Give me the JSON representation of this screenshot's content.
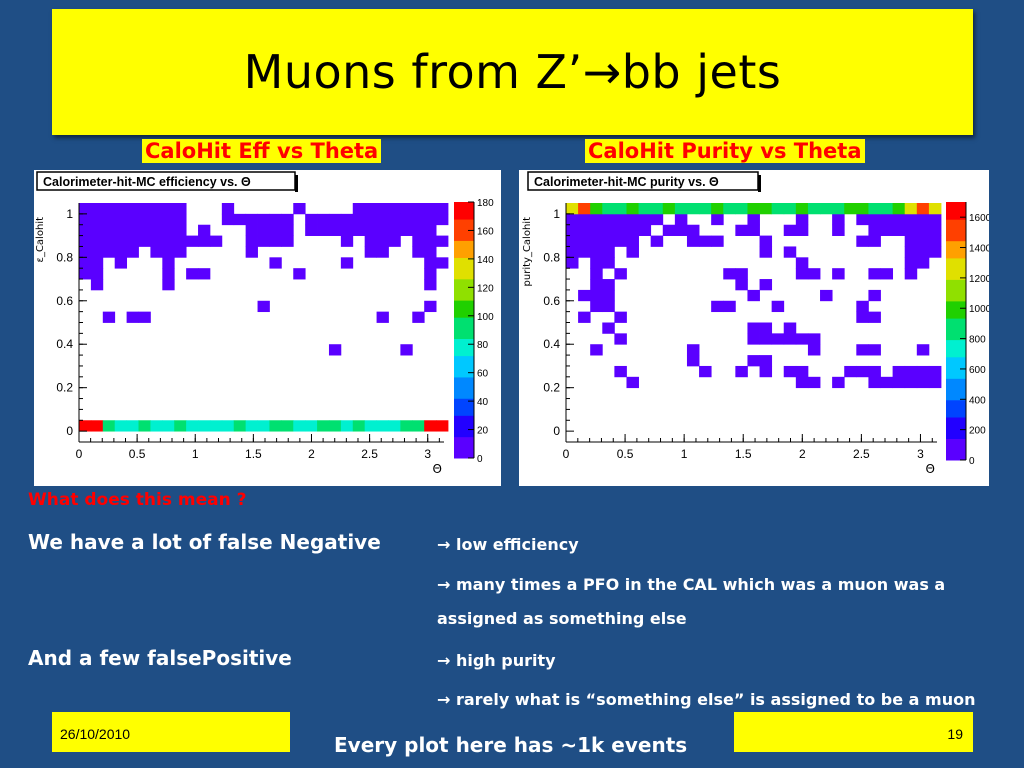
{
  "slide": {
    "title": "Muons from Z’→bb jets",
    "question": "What does this mean ?",
    "false_negative": "We have a lot of false Negative",
    "false_positive": "And a few falsePositive",
    "bullets": [
      "→ low efficiency",
      "→ many times a PFO in the CAL which was a muon was  a",
      "assigned as something else",
      "→ high purity",
      "→ rarely what is  “something else” is assigned to be a muon"
    ],
    "footer_date": "26/10/2010",
    "footer_page": "19",
    "footer_note": "Every plot here has ~1k events"
  },
  "chart_data": [
    {
      "type": "heatmap",
      "caption": "CaloHit Eff vs Theta",
      "title": "Calorimeter-hit-MC efficiency vs. Θ",
      "xlabel": "Θ",
      "ylabel": "ε_Calohit",
      "xlim": [
        0,
        3.14
      ],
      "ylim": [
        -0.05,
        1.05
      ],
      "x_ticks": [
        "0",
        "0.5",
        "1",
        "1.5",
        "2",
        "2.5",
        "3"
      ],
      "y_ticks": [
        "0",
        "0.2",
        "0.4",
        "0.6",
        "0.8",
        "1"
      ],
      "z_ticks": [
        "0",
        "20",
        "40",
        "60",
        "80",
        "100",
        "120",
        "140",
        "160",
        "180"
      ],
      "z_max": 180,
      "nbins_x": 31,
      "nbins_y": 22,
      "bin_value": 10,
      "dense_row": {
        "y_bin": 1,
        "values": [
          170,
          180,
          90,
          70,
          80,
          85,
          80,
          75,
          85,
          80,
          80,
          75,
          80,
          85,
          75,
          80,
          85,
          90,
          80,
          75,
          85,
          90,
          80,
          85,
          80,
          75,
          80,
          85,
          95,
          180,
          170
        ]
      },
      "colors": {
        "sparse": "#9a1aff",
        "grid": "#000000"
      },
      "cells": [
        [
          0,
          21
        ],
        [
          1,
          21
        ],
        [
          2,
          21
        ],
        [
          3,
          21
        ],
        [
          4,
          21
        ],
        [
          5,
          21
        ],
        [
          6,
          21
        ],
        [
          7,
          21
        ],
        [
          8,
          21
        ],
        [
          12,
          21
        ],
        [
          18,
          21
        ],
        [
          23,
          21
        ],
        [
          24,
          21
        ],
        [
          25,
          21
        ],
        [
          26,
          21
        ],
        [
          27,
          21
        ],
        [
          28,
          21
        ],
        [
          29,
          21
        ],
        [
          30,
          21
        ],
        [
          0,
          20
        ],
        [
          1,
          20
        ],
        [
          2,
          20
        ],
        [
          3,
          20
        ],
        [
          4,
          20
        ],
        [
          5,
          20
        ],
        [
          6,
          20
        ],
        [
          7,
          20
        ],
        [
          8,
          20
        ],
        [
          12,
          20
        ],
        [
          13,
          20
        ],
        [
          14,
          20
        ],
        [
          15,
          20
        ],
        [
          16,
          20
        ],
        [
          17,
          20
        ],
        [
          19,
          20
        ],
        [
          20,
          20
        ],
        [
          21,
          20
        ],
        [
          22,
          20
        ],
        [
          23,
          20
        ],
        [
          24,
          20
        ],
        [
          25,
          20
        ],
        [
          26,
          20
        ],
        [
          27,
          20
        ],
        [
          28,
          20
        ],
        [
          29,
          20
        ],
        [
          30,
          20
        ],
        [
          0,
          19
        ],
        [
          1,
          19
        ],
        [
          2,
          19
        ],
        [
          3,
          19
        ],
        [
          4,
          19
        ],
        [
          5,
          19
        ],
        [
          6,
          19
        ],
        [
          7,
          19
        ],
        [
          8,
          19
        ],
        [
          10,
          19
        ],
        [
          14,
          19
        ],
        [
          15,
          19
        ],
        [
          16,
          19
        ],
        [
          17,
          19
        ],
        [
          19,
          19
        ],
        [
          20,
          19
        ],
        [
          21,
          19
        ],
        [
          22,
          19
        ],
        [
          23,
          19
        ],
        [
          24,
          19
        ],
        [
          25,
          19
        ],
        [
          26,
          19
        ],
        [
          27,
          19
        ],
        [
          28,
          19
        ],
        [
          29,
          19
        ],
        [
          0,
          18
        ],
        [
          1,
          18
        ],
        [
          2,
          18
        ],
        [
          3,
          18
        ],
        [
          4,
          18
        ],
        [
          5,
          18
        ],
        [
          6,
          18
        ],
        [
          7,
          18
        ],
        [
          8,
          18
        ],
        [
          9,
          18
        ],
        [
          10,
          18
        ],
        [
          11,
          18
        ],
        [
          14,
          18
        ],
        [
          15,
          18
        ],
        [
          16,
          18
        ],
        [
          17,
          18
        ],
        [
          22,
          18
        ],
        [
          24,
          18
        ],
        [
          25,
          18
        ],
        [
          26,
          18
        ],
        [
          28,
          18
        ],
        [
          29,
          18
        ],
        [
          30,
          18
        ],
        [
          0,
          17
        ],
        [
          1,
          17
        ],
        [
          2,
          17
        ],
        [
          3,
          17
        ],
        [
          4,
          17
        ],
        [
          6,
          17
        ],
        [
          7,
          17
        ],
        [
          8,
          17
        ],
        [
          14,
          17
        ],
        [
          24,
          17
        ],
        [
          25,
          17
        ],
        [
          28,
          17
        ],
        [
          29,
          17
        ],
        [
          0,
          16
        ],
        [
          1,
          16
        ],
        [
          3,
          16
        ],
        [
          7,
          16
        ],
        [
          16,
          16
        ],
        [
          22,
          16
        ],
        [
          29,
          16
        ],
        [
          30,
          16
        ],
        [
          0,
          15
        ],
        [
          1,
          15
        ],
        [
          7,
          15
        ],
        [
          9,
          15
        ],
        [
          10,
          15
        ],
        [
          18,
          15
        ],
        [
          29,
          15
        ],
        [
          1,
          14
        ],
        [
          7,
          14
        ],
        [
          29,
          14
        ],
        [
          15,
          12
        ],
        [
          29,
          12
        ],
        [
          2,
          11
        ],
        [
          4,
          11
        ],
        [
          5,
          11
        ],
        [
          25,
          11
        ],
        [
          28,
          11
        ],
        [
          21,
          8
        ],
        [
          27,
          8
        ]
      ]
    },
    {
      "type": "heatmap",
      "caption": "CaloHit Purity vs Theta",
      "title": "Calorimeter-hit-MC purity vs. Θ",
      "xlabel": "Θ",
      "ylabel": "purity_Calohit",
      "xlim": [
        0,
        3.14
      ],
      "ylim": [
        -0.05,
        1.05
      ],
      "x_ticks": [
        "0",
        "0.5",
        "1",
        "1.5",
        "2",
        "2.5",
        "3"
      ],
      "y_ticks": [
        "0",
        "0.2",
        "0.4",
        "0.6",
        "0.8",
        "1"
      ],
      "z_ticks": [
        "0",
        "200",
        "400",
        "600",
        "800",
        "1000",
        "1200",
        "1400",
        "1600"
      ],
      "z_max": 1700,
      "nbins_x": 31,
      "nbins_y": 22,
      "bin_value": 50,
      "dense_row": {
        "y_bin": 21,
        "values": [
          1200,
          1500,
          1000,
          800,
          900,
          1000,
          900,
          850,
          950,
          900,
          850,
          900,
          950,
          850,
          900,
          950,
          1000,
          900,
          850,
          950,
          900,
          850,
          900,
          950,
          1000,
          900,
          850,
          1000,
          1300,
          1500,
          1200
        ]
      },
      "colors": {
        "sparse": "#9a1aff",
        "grid": "#000000"
      },
      "cells": [
        [
          0,
          20
        ],
        [
          1,
          20
        ],
        [
          2,
          20
        ],
        [
          3,
          20
        ],
        [
          4,
          20
        ],
        [
          5,
          20
        ],
        [
          6,
          20
        ],
        [
          7,
          20
        ],
        [
          9,
          20
        ],
        [
          12,
          20
        ],
        [
          15,
          20
        ],
        [
          19,
          20
        ],
        [
          22,
          20
        ],
        [
          24,
          20
        ],
        [
          25,
          20
        ],
        [
          26,
          20
        ],
        [
          27,
          20
        ],
        [
          28,
          20
        ],
        [
          29,
          20
        ],
        [
          30,
          20
        ],
        [
          0,
          19
        ],
        [
          1,
          19
        ],
        [
          2,
          19
        ],
        [
          3,
          19
        ],
        [
          4,
          19
        ],
        [
          5,
          19
        ],
        [
          6,
          19
        ],
        [
          8,
          19
        ],
        [
          9,
          19
        ],
        [
          10,
          19
        ],
        [
          14,
          19
        ],
        [
          15,
          19
        ],
        [
          18,
          19
        ],
        [
          19,
          19
        ],
        [
          22,
          19
        ],
        [
          25,
          19
        ],
        [
          26,
          19
        ],
        [
          27,
          19
        ],
        [
          28,
          19
        ],
        [
          29,
          19
        ],
        [
          30,
          19
        ],
        [
          0,
          18
        ],
        [
          1,
          18
        ],
        [
          2,
          18
        ],
        [
          3,
          18
        ],
        [
          4,
          18
        ],
        [
          5,
          18
        ],
        [
          7,
          18
        ],
        [
          10,
          18
        ],
        [
          11,
          18
        ],
        [
          12,
          18
        ],
        [
          16,
          18
        ],
        [
          24,
          18
        ],
        [
          25,
          18
        ],
        [
          28,
          18
        ],
        [
          29,
          18
        ],
        [
          30,
          18
        ],
        [
          0,
          17
        ],
        [
          1,
          17
        ],
        [
          2,
          17
        ],
        [
          3,
          17
        ],
        [
          5,
          17
        ],
        [
          16,
          17
        ],
        [
          18,
          17
        ],
        [
          28,
          17
        ],
        [
          29,
          17
        ],
        [
          30,
          17
        ],
        [
          0,
          16
        ],
        [
          2,
          16
        ],
        [
          3,
          16
        ],
        [
          19,
          16
        ],
        [
          28,
          16
        ],
        [
          29,
          16
        ],
        [
          2,
          15
        ],
        [
          4,
          15
        ],
        [
          13,
          15
        ],
        [
          14,
          15
        ],
        [
          19,
          15
        ],
        [
          20,
          15
        ],
        [
          22,
          15
        ],
        [
          25,
          15
        ],
        [
          26,
          15
        ],
        [
          28,
          15
        ],
        [
          2,
          14
        ],
        [
          3,
          14
        ],
        [
          14,
          14
        ],
        [
          16,
          14
        ],
        [
          1,
          13
        ],
        [
          2,
          13
        ],
        [
          3,
          13
        ],
        [
          15,
          13
        ],
        [
          21,
          13
        ],
        [
          25,
          13
        ],
        [
          2,
          12
        ],
        [
          3,
          12
        ],
        [
          12,
          12
        ],
        [
          13,
          12
        ],
        [
          17,
          12
        ],
        [
          24,
          12
        ],
        [
          1,
          11
        ],
        [
          4,
          11
        ],
        [
          24,
          11
        ],
        [
          25,
          11
        ],
        [
          3,
          10
        ],
        [
          15,
          10
        ],
        [
          16,
          10
        ],
        [
          18,
          10
        ],
        [
          4,
          9
        ],
        [
          15,
          9
        ],
        [
          16,
          9
        ],
        [
          17,
          9
        ],
        [
          18,
          9
        ],
        [
          19,
          9
        ],
        [
          20,
          9
        ],
        [
          2,
          8
        ],
        [
          10,
          8
        ],
        [
          20,
          8
        ],
        [
          24,
          8
        ],
        [
          25,
          8
        ],
        [
          29,
          8
        ],
        [
          10,
          7
        ],
        [
          15,
          7
        ],
        [
          16,
          7
        ],
        [
          4,
          6
        ],
        [
          11,
          6
        ],
        [
          14,
          6
        ],
        [
          16,
          6
        ],
        [
          18,
          6
        ],
        [
          19,
          6
        ],
        [
          23,
          6
        ],
        [
          24,
          6
        ],
        [
          25,
          6
        ],
        [
          27,
          6
        ],
        [
          28,
          6
        ],
        [
          29,
          6
        ],
        [
          30,
          6
        ],
        [
          5,
          5
        ],
        [
          19,
          5
        ],
        [
          20,
          5
        ],
        [
          22,
          5
        ],
        [
          25,
          5
        ],
        [
          26,
          5
        ],
        [
          27,
          5
        ],
        [
          28,
          5
        ],
        [
          29,
          5
        ],
        [
          30,
          5
        ]
      ]
    }
  ]
}
